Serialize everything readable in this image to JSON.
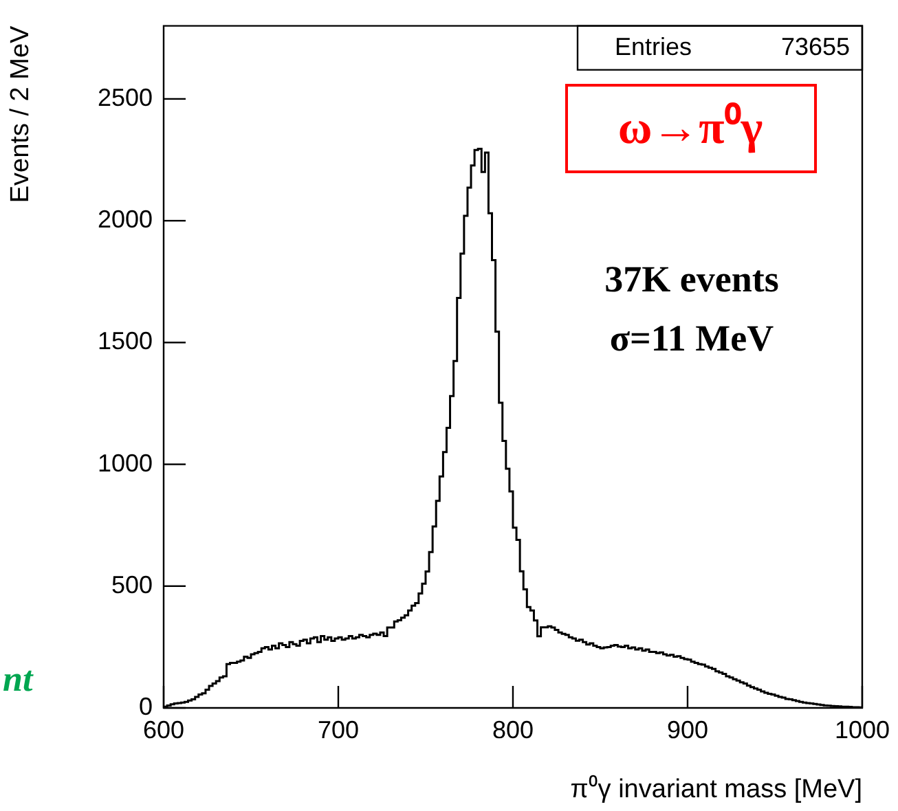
{
  "chart_data": {
    "type": "histogram",
    "xlabel": "π⁰γ invariant mass [MeV]",
    "ylabel": "Events / 2 MeV",
    "color": "#000000",
    "bins": [
      600,
      602,
      604,
      606,
      608,
      610,
      612,
      614,
      616,
      618,
      620,
      622,
      624,
      626,
      628,
      630,
      632,
      634,
      636,
      638,
      640,
      642,
      644,
      646,
      648,
      650,
      652,
      654,
      656,
      658,
      660,
      662,
      664,
      666,
      668,
      670,
      672,
      674,
      676,
      678,
      680,
      682,
      684,
      686,
      688,
      690,
      692,
      694,
      696,
      698,
      700,
      702,
      704,
      706,
      708,
      710,
      712,
      714,
      716,
      718,
      720,
      722,
      724,
      726,
      728,
      730,
      732,
      734,
      736,
      738,
      740,
      742,
      744,
      746,
      748,
      750,
      752,
      754,
      756,
      758,
      760,
      762,
      764,
      766,
      768,
      770,
      772,
      774,
      776,
      778,
      780,
      782,
      784,
      786,
      788,
      790,
      792,
      794,
      796,
      798,
      800,
      802,
      804,
      806,
      808,
      810,
      812,
      814,
      816,
      818,
      820,
      822,
      824,
      826,
      828,
      830,
      832,
      834,
      836,
      838,
      840,
      842,
      844,
      846,
      848,
      850,
      852,
      854,
      856,
      858,
      860,
      862,
      864,
      866,
      868,
      870,
      872,
      874,
      876,
      878,
      880,
      882,
      884,
      886,
      888,
      890,
      892,
      894,
      896,
      898,
      900,
      902,
      904,
      906,
      908,
      910,
      912,
      914,
      916,
      918,
      920,
      922,
      924,
      926,
      928,
      930,
      932,
      934,
      936,
      938,
      940,
      942,
      944,
      946,
      948,
      950,
      952,
      954,
      956,
      958,
      960,
      962,
      964,
      966,
      968,
      970,
      972,
      974,
      976,
      978,
      980,
      982,
      984,
      986,
      988,
      990,
      992,
      994,
      996,
      998,
      1000
    ],
    "values": [
      5,
      10,
      15,
      18,
      20,
      22,
      25,
      30,
      35,
      45,
      55,
      60,
      75,
      90,
      100,
      110,
      125,
      130,
      180,
      185,
      185,
      190,
      195,
      210,
      205,
      220,
      225,
      230,
      245,
      250,
      240,
      255,
      245,
      265,
      258,
      250,
      270,
      262,
      255,
      275,
      280,
      265,
      285,
      290,
      270,
      295,
      280,
      290,
      275,
      285,
      290,
      280,
      285,
      295,
      285,
      290,
      300,
      295,
      290,
      300,
      305,
      300,
      310,
      295,
      330,
      330,
      355,
      360,
      370,
      380,
      400,
      420,
      430,
      470,
      510,
      560,
      640,
      745,
      850,
      950,
      1050,
      1150,
      1280,
      1424,
      1683,
      1865,
      2020,
      2136,
      2227,
      2290,
      2295,
      2200,
      2280,
      2031,
      1838,
      1545,
      1253,
      1096,
      982,
      889,
      740,
      690,
      561,
      487,
      414,
      400,
      359,
      294,
      331,
      331,
      335,
      330,
      320,
      310,
      304,
      300,
      290,
      285,
      276,
      280,
      270,
      260,
      265,
      255,
      250,
      245,
      248,
      250,
      255,
      258,
      252,
      250,
      255,
      245,
      248,
      240,
      245,
      235,
      240,
      230,
      230,
      225,
      228,
      220,
      215,
      218,
      210,
      212,
      205,
      200,
      198,
      190,
      185,
      180,
      178,
      170,
      165,
      160,
      150,
      145,
      140,
      130,
      125,
      118,
      112,
      105,
      100,
      92,
      85,
      80,
      75,
      68,
      62,
      58,
      55,
      50,
      45,
      42,
      37,
      35,
      32,
      28,
      25,
      22,
      20,
      18,
      16,
      14,
      12,
      10,
      9,
      8,
      7,
      6,
      5,
      5,
      4,
      3,
      3,
      2
    ],
    "xlim": [
      600,
      1000
    ],
    "xticks": [
      600,
      700,
      800,
      900,
      1000
    ],
    "ylim": [
      0,
      2800
    ],
    "yticks": [
      0,
      500,
      1000,
      1500,
      2000,
      2500
    ],
    "annotations": [
      "Entries",
      "73655",
      "ω→π⁰γ",
      "37K events",
      "σ=11 MeV",
      "nt"
    ]
  }
}
